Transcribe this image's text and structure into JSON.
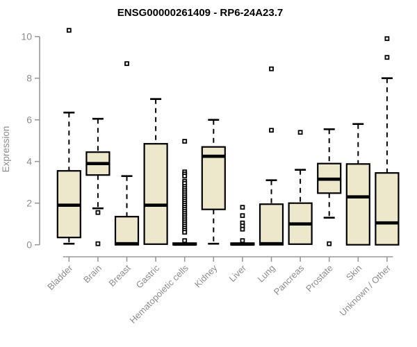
{
  "chart_data": {
    "type": "box",
    "title": "ENSG00000261409 - RP6-24A23.7",
    "ylabel": "Expression",
    "xlabel": "",
    "ylim": [
      0,
      10
    ],
    "y_ticks": [
      0,
      2,
      4,
      6,
      8,
      10
    ],
    "grid": false,
    "legend": "none",
    "box_fill": "#EDE7CC",
    "box_stroke": "#000000",
    "axis_line_color": "#989898",
    "axis_text_color": "#8C8C8C",
    "title_color": "#000000",
    "categories": [
      "Bladder",
      "Brain",
      "Breast",
      "Gastric",
      "Hematopoietic cells",
      "Kidney",
      "Liver",
      "Lung",
      "Pancreas",
      "Prostate",
      "Skin",
      "Unknown / Other"
    ],
    "series": [
      {
        "name": "Bladder",
        "whisker_low": 0.05,
        "q1": 0.35,
        "median": 1.9,
        "q3": 3.55,
        "whisker_high": 6.35,
        "outliers": [
          10.3
        ]
      },
      {
        "name": "Brain",
        "whisker_low": 1.75,
        "q1": 3.35,
        "median": 3.9,
        "q3": 4.45,
        "whisker_high": 6.05,
        "outliers": [
          1.55,
          0.05
        ]
      },
      {
        "name": "Breast",
        "whisker_low": 0,
        "q1": 0,
        "median": 0.05,
        "q3": 1.35,
        "whisker_high": 3.3,
        "outliers": [
          8.7
        ]
      },
      {
        "name": "Gastric",
        "whisker_low": 0.03,
        "q1": 0.03,
        "median": 1.9,
        "q3": 4.85,
        "whisker_high": 7.0,
        "outliers": []
      },
      {
        "name": "Hematopoietic cells",
        "whisker_low": 0,
        "q1": 0,
        "median": 0.03,
        "q3": 0.08,
        "whisker_high": 0.08,
        "outliers": [
          4.97,
          3.5,
          3.4,
          3.3,
          3.05,
          2.95,
          2.8,
          2.7,
          2.6,
          2.5,
          2.4,
          2.3,
          2.2,
          2.1,
          2.0,
          1.9,
          1.8,
          1.7,
          1.6,
          1.5,
          1.4,
          1.3,
          1.2,
          1.1,
          1.0,
          0.9,
          0.8,
          0.7,
          0.6,
          0.2
        ]
      },
      {
        "name": "Kidney",
        "whisker_low": 0.05,
        "q1": 1.7,
        "median": 4.25,
        "q3": 4.7,
        "whisker_high": 6.0,
        "outliers": []
      },
      {
        "name": "Liver",
        "whisker_low": 0,
        "q1": 0,
        "median": 0.03,
        "q3": 0.08,
        "whisker_high": 0.08,
        "outliers": [
          1.8,
          1.4,
          1.05,
          0.9,
          0.75,
          0.2
        ]
      },
      {
        "name": "Lung",
        "whisker_low": 0,
        "q1": 0,
        "median": 0.05,
        "q3": 1.95,
        "whisker_high": 3.1,
        "outliers": [
          8.45,
          5.5
        ]
      },
      {
        "name": "Pancreas",
        "whisker_low": 0.03,
        "q1": 0.03,
        "median": 1.0,
        "q3": 2.0,
        "whisker_high": 3.6,
        "outliers": [
          5.4
        ]
      },
      {
        "name": "Prostate",
        "whisker_low": 1.3,
        "q1": 2.48,
        "median": 3.15,
        "q3": 3.9,
        "whisker_high": 5.55,
        "outliers": [
          0.05
        ]
      },
      {
        "name": "Skin",
        "whisker_low": 0,
        "q1": 0,
        "median": 2.3,
        "q3": 3.88,
        "whisker_high": 5.8,
        "outliers": []
      },
      {
        "name": "Unknown / Other",
        "whisker_low": 0,
        "q1": 0,
        "median": 1.05,
        "q3": 3.45,
        "whisker_high": 8.0,
        "outliers": [
          9.9,
          9.0
        ]
      }
    ]
  }
}
